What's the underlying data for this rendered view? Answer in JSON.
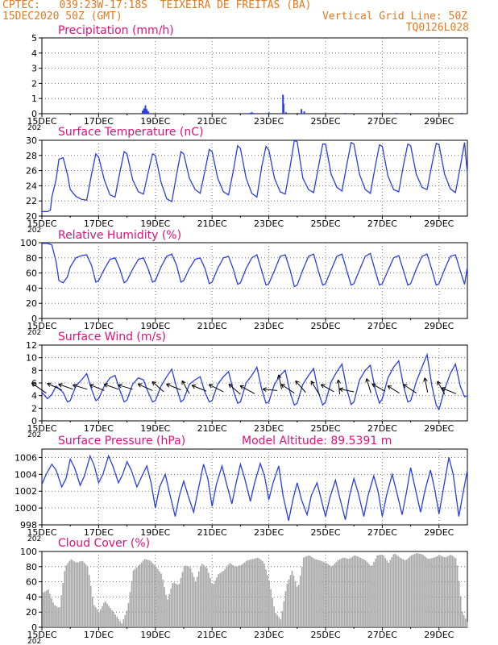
{
  "header": {
    "line1_left": "CPTEC:   039:23W-17:18S  TEIXEIRA DE FREITAS (BA)",
    "line2_left": "15DEC2020 50Z (GMT)",
    "line2_right": "Vertical Grid Line: 50Z",
    "line3_right": "TQ0126L028"
  },
  "colors": {
    "header": "#e07a1f",
    "title": "#e0107a",
    "line": "#2a3fe0",
    "cloud": "#a8a8a8",
    "grid": "#555555"
  },
  "x_ticks": [
    "15DEC",
    "17DEC",
    "19DEC",
    "21DEC",
    "23DEC",
    "25DEC",
    "27DEC",
    "29DEC"
  ],
  "x_tick_days": [
    0,
    2,
    4,
    6,
    8,
    10,
    12,
    14
  ],
  "x_year_fragment": "202",
  "chart_data": [
    {
      "type": "bar",
      "title": "Precipitation (mm/h)",
      "ylim": [
        0,
        5
      ],
      "yticks": [
        0,
        1,
        2,
        3,
        4,
        5
      ],
      "x": [
        3.55,
        3.6,
        3.65,
        3.7,
        3.75,
        7.35,
        7.4,
        7.45,
        8.0,
        8.5,
        8.52,
        8.6,
        9.0,
        9.15,
        9.25,
        10.7,
        12.5,
        14.8
      ],
      "values": [
        0.2,
        0.35,
        0.55,
        0.3,
        0.15,
        0.05,
        0.1,
        0.05,
        0.08,
        1.25,
        0.65,
        0.1,
        0.05,
        0.3,
        0.15,
        0.05,
        0.05,
        0.05
      ]
    },
    {
      "type": "line",
      "title": "Surface Temperature (nC)",
      "ylim": [
        20,
        30
      ],
      "yticks": [
        20,
        22,
        24,
        26,
        28,
        30
      ],
      "x": [
        0,
        0.2,
        0.3,
        0.35,
        0.5,
        0.6,
        0.75,
        0.9,
        1.0,
        1.2,
        1.4,
        1.58,
        1.75,
        1.9,
        2.0,
        2.2,
        2.4,
        2.58,
        2.75,
        2.9,
        3.0,
        3.2,
        3.4,
        3.58,
        3.75,
        3.9,
        4.0,
        4.2,
        4.4,
        4.58,
        4.75,
        4.9,
        5.0,
        5.2,
        5.4,
        5.58,
        5.75,
        5.9,
        6.0,
        6.2,
        6.4,
        6.58,
        6.75,
        6.9,
        7.0,
        7.2,
        7.4,
        7.58,
        7.75,
        7.9,
        8.0,
        8.2,
        8.4,
        8.58,
        8.75,
        8.9,
        9.0,
        9.2,
        9.4,
        9.58,
        9.75,
        9.9,
        10.0,
        10.2,
        10.4,
        10.58,
        10.75,
        10.9,
        11.0,
        11.2,
        11.4,
        11.58,
        11.75,
        11.9,
        12.0,
        12.2,
        12.4,
        12.58,
        12.75,
        12.9,
        13.0,
        13.2,
        13.4,
        13.58,
        13.75,
        13.9,
        14.0,
        14.2,
        14.4,
        14.58,
        14.75,
        14.9,
        15.0
      ],
      "values": [
        20.6,
        20.6,
        20.8,
        22.5,
        24.8,
        27.5,
        27.7,
        25.5,
        23.5,
        22.6,
        22.2,
        22.1,
        25.5,
        28.2,
        27.8,
        24.8,
        22.8,
        22.5,
        25.8,
        28.5,
        28.2,
        24.8,
        23.2,
        22.9,
        25.8,
        28.2,
        28.0,
        24.5,
        22.3,
        21.9,
        25.5,
        28.5,
        28.2,
        25.0,
        23.5,
        23.0,
        26.0,
        28.8,
        28.5,
        25.0,
        23.2,
        22.8,
        26.0,
        29.3,
        28.9,
        25.0,
        23.0,
        22.5,
        26.5,
        29.2,
        28.7,
        25.0,
        23.2,
        22.9,
        26.5,
        30.1,
        29.8,
        25.0,
        23.5,
        23.1,
        26.5,
        29.5,
        29.5,
        25.5,
        23.8,
        23.3,
        26.8,
        29.7,
        29.5,
        25.5,
        23.5,
        23.0,
        26.5,
        29.4,
        29.2,
        25.3,
        23.5,
        23.2,
        26.8,
        29.5,
        29.3,
        25.5,
        23.8,
        23.5,
        26.8,
        29.6,
        29.4,
        25.5,
        23.6,
        23.1,
        26.5,
        29.7,
        25.6
      ]
    },
    {
      "type": "line",
      "title": "Relative Humidity (%)",
      "ylim": [
        0,
        100
      ],
      "yticks": [
        0,
        20,
        40,
        60,
        80,
        100
      ],
      "x": [
        0,
        0.2,
        0.35,
        0.5,
        0.6,
        0.75,
        0.9,
        1.0,
        1.2,
        1.4,
        1.58,
        1.75,
        1.9,
        2.0,
        2.2,
        2.4,
        2.58,
        2.75,
        2.9,
        3.0,
        3.2,
        3.4,
        3.58,
        3.75,
        3.9,
        4.0,
        4.2,
        4.4,
        4.58,
        4.75,
        4.9,
        5.0,
        5.2,
        5.4,
        5.58,
        5.75,
        5.9,
        6.0,
        6.2,
        6.4,
        6.58,
        6.75,
        6.9,
        7.0,
        7.2,
        7.4,
        7.58,
        7.75,
        7.9,
        8.0,
        8.2,
        8.4,
        8.58,
        8.75,
        8.9,
        9.0,
        9.2,
        9.4,
        9.58,
        9.75,
        9.9,
        10.0,
        10.2,
        10.4,
        10.58,
        10.75,
        10.9,
        11.0,
        11.2,
        11.4,
        11.58,
        11.75,
        11.9,
        12.0,
        12.2,
        12.4,
        12.58,
        12.75,
        12.9,
        13.0,
        13.2,
        13.4,
        13.58,
        13.75,
        13.9,
        14.0,
        14.2,
        14.4,
        14.58,
        14.75,
        14.9,
        15.0
      ],
      "values": [
        99,
        99,
        97,
        75,
        50,
        47,
        55,
        68,
        80,
        83,
        84,
        70,
        48,
        50,
        65,
        78,
        80,
        65,
        47,
        50,
        65,
        78,
        80,
        65,
        48,
        50,
        68,
        82,
        85,
        70,
        48,
        50,
        66,
        78,
        80,
        66,
        46,
        48,
        66,
        80,
        82,
        65,
        45,
        47,
        66,
        80,
        84,
        63,
        44,
        46,
        63,
        82,
        84,
        64,
        42,
        44,
        64,
        82,
        85,
        62,
        44,
        46,
        64,
        82,
        85,
        63,
        44,
        46,
        64,
        82,
        86,
        63,
        44,
        46,
        63,
        80,
        83,
        63,
        44,
        46,
        65,
        82,
        85,
        64,
        44,
        46,
        65,
        82,
        84,
        63,
        45,
        68
      ]
    },
    {
      "type": "line",
      "title": "Surface Wind (m/s)",
      "ylim": [
        0,
        12
      ],
      "yticks": [
        0,
        2,
        4,
        6,
        8,
        10,
        12
      ],
      "x": [
        0,
        0.2,
        0.35,
        0.5,
        0.75,
        0.9,
        1.0,
        1.2,
        1.4,
        1.58,
        1.75,
        1.9,
        2.0,
        2.2,
        2.4,
        2.58,
        2.75,
        2.9,
        3.0,
        3.2,
        3.4,
        3.58,
        3.75,
        3.9,
        4.0,
        4.2,
        4.4,
        4.58,
        4.75,
        4.9,
        5.0,
        5.2,
        5.4,
        5.58,
        5.75,
        5.9,
        6.0,
        6.2,
        6.4,
        6.58,
        6.75,
        6.9,
        7.0,
        7.2,
        7.4,
        7.58,
        7.75,
        7.9,
        8.0,
        8.2,
        8.4,
        8.58,
        8.75,
        8.9,
        9.0,
        9.2,
        9.4,
        9.58,
        9.75,
        9.9,
        10.0,
        10.2,
        10.4,
        10.58,
        10.75,
        10.9,
        11.0,
        11.2,
        11.4,
        11.58,
        11.75,
        11.9,
        12.0,
        12.2,
        12.4,
        12.58,
        12.75,
        12.9,
        13.0,
        13.2,
        13.4,
        13.58,
        13.75,
        13.9,
        14.0,
        14.2,
        14.4,
        14.58,
        14.75,
        14.9,
        15.0
      ],
      "values": [
        4.5,
        3.5,
        4.2,
        5.5,
        4.5,
        3.0,
        3.2,
        5.5,
        6.5,
        7.5,
        5.0,
        3.2,
        3.5,
        5.5,
        6.8,
        7.2,
        4.8,
        3.0,
        3.3,
        5.8,
        6.8,
        6.5,
        4.5,
        3.0,
        3.2,
        5.5,
        7.0,
        8.2,
        5.2,
        3.0,
        3.4,
        5.8,
        6.5,
        7.0,
        4.5,
        3.0,
        3.2,
        5.8,
        7.0,
        7.8,
        4.8,
        2.8,
        3.0,
        6.0,
        7.2,
        8.5,
        5.0,
        2.8,
        3.0,
        5.8,
        7.2,
        8.0,
        4.5,
        2.5,
        2.8,
        5.8,
        7.2,
        8.3,
        4.5,
        2.5,
        3.0,
        6.2,
        7.8,
        9.0,
        5.0,
        2.6,
        3.0,
        6.5,
        8.0,
        8.8,
        5.0,
        2.8,
        3.5,
        6.8,
        8.5,
        9.5,
        5.5,
        3.0,
        3.2,
        6.2,
        8.5,
        10.5,
        5.5,
        2.5,
        1.8,
        5.0,
        7.5,
        9.0,
        5.5,
        3.8,
        4.0
      ]
    },
    {
      "type": "line",
      "title": "Surface Pressure (hPa)",
      "subtitle": "Model Altitude: 89.5391 m",
      "ylim": [
        998,
        1007
      ],
      "yticks": [
        998,
        1000,
        1002,
        1004,
        1006
      ],
      "x": [
        0,
        0.15,
        0.35,
        0.5,
        0.7,
        0.85,
        1.0,
        1.15,
        1.35,
        1.5,
        1.7,
        1.85,
        2.0,
        2.15,
        2.35,
        2.5,
        2.7,
        2.85,
        3.0,
        3.15,
        3.35,
        3.5,
        3.7,
        3.85,
        4.0,
        4.15,
        4.35,
        4.5,
        4.7,
        4.85,
        5.0,
        5.15,
        5.35,
        5.5,
        5.7,
        5.85,
        6.0,
        6.15,
        6.35,
        6.5,
        6.7,
        6.85,
        7.0,
        7.15,
        7.35,
        7.5,
        7.7,
        7.85,
        8.0,
        8.15,
        8.35,
        8.5,
        8.7,
        8.85,
        9.0,
        9.15,
        9.35,
        9.5,
        9.7,
        9.85,
        10.0,
        10.15,
        10.35,
        10.5,
        10.7,
        10.85,
        11.0,
        11.15,
        11.35,
        11.5,
        11.7,
        11.85,
        12.0,
        12.15,
        12.35,
        12.5,
        12.7,
        12.85,
        13.0,
        13.15,
        13.35,
        13.5,
        13.7,
        13.85,
        14.0,
        14.15,
        14.35,
        14.5,
        14.7,
        14.85,
        15.0
      ],
      "values": [
        1002.8,
        1004.0,
        1005.2,
        1004.5,
        1002.5,
        1003.5,
        1005.8,
        1004.8,
        1002.7,
        1003.8,
        1006.2,
        1005.0,
        1003.0,
        1004.0,
        1006.2,
        1005.0,
        1003.0,
        1004.0,
        1005.5,
        1004.5,
        1002.5,
        1003.6,
        1005.0,
        1003.0,
        1000.0,
        1002.5,
        1004.0,
        1001.8,
        999.0,
        1001.5,
        1003.2,
        1001.5,
        999.5,
        1002.0,
        1005.2,
        1003.5,
        1000.2,
        1002.8,
        1005.0,
        1003.0,
        1000.5,
        1003.0,
        1005.2,
        1003.5,
        1000.8,
        1003.0,
        1005.3,
        1003.8,
        1001.0,
        1003.0,
        1005.0,
        1001.5,
        998.5,
        1001.0,
        1003.0,
        1001.0,
        999.2,
        1001.5,
        1003.0,
        1001.0,
        999.0,
        1001.2,
        1003.3,
        1001.2,
        998.6,
        1001.5,
        1003.5,
        1001.8,
        999.0,
        1001.5,
        1003.8,
        1002.0,
        999.0,
        1001.5,
        1004.0,
        1002.0,
        999.2,
        1001.8,
        1004.8,
        1002.5,
        999.5,
        1002.0,
        1004.5,
        1002.2,
        999.3,
        1002.2,
        1006.0,
        1004.0,
        999.0,
        1001.8,
        1004.5
      ]
    },
    {
      "type": "area",
      "title": "Cloud Cover (%)",
      "ylim": [
        0,
        100
      ],
      "yticks": [
        0,
        20,
        40,
        60,
        80,
        100
      ],
      "x": [
        0,
        0.2,
        0.4,
        0.6,
        0.8,
        1.0,
        1.2,
        1.4,
        1.6,
        1.8,
        2.0,
        2.2,
        2.4,
        2.6,
        2.8,
        3.0,
        3.2,
        3.4,
        3.6,
        3.8,
        4.0,
        4.2,
        4.4,
        4.6,
        4.8,
        5.0,
        5.2,
        5.4,
        5.6,
        5.8,
        6.0,
        6.2,
        6.4,
        6.6,
        6.8,
        7.0,
        7.2,
        7.4,
        7.6,
        7.8,
        8.0,
        8.2,
        8.4,
        8.6,
        8.8,
        9.0,
        9.2,
        9.4,
        9.6,
        9.8,
        10.0,
        10.2,
        10.4,
        10.6,
        10.8,
        11.0,
        11.2,
        11.4,
        11.6,
        11.8,
        12.0,
        12.2,
        12.4,
        12.6,
        12.8,
        13.0,
        13.2,
        13.4,
        13.6,
        13.8,
        14.0,
        14.2,
        14.4,
        14.6,
        14.8,
        15.0
      ],
      "values": [
        45,
        50,
        30,
        25,
        80,
        90,
        85,
        88,
        80,
        30,
        20,
        35,
        25,
        15,
        5,
        25,
        75,
        82,
        90,
        88,
        80,
        70,
        35,
        60,
        55,
        82,
        80,
        60,
        85,
        78,
        55,
        70,
        75,
        85,
        80,
        82,
        88,
        90,
        92,
        86,
        60,
        20,
        10,
        55,
        75,
        50,
        92,
        95,
        90,
        88,
        85,
        80,
        88,
        92,
        90,
        95,
        92,
        88,
        80,
        95,
        96,
        85,
        98,
        92,
        88,
        95,
        98,
        96,
        90,
        92,
        95,
        92,
        96,
        90,
        20,
        5
      ]
    }
  ]
}
